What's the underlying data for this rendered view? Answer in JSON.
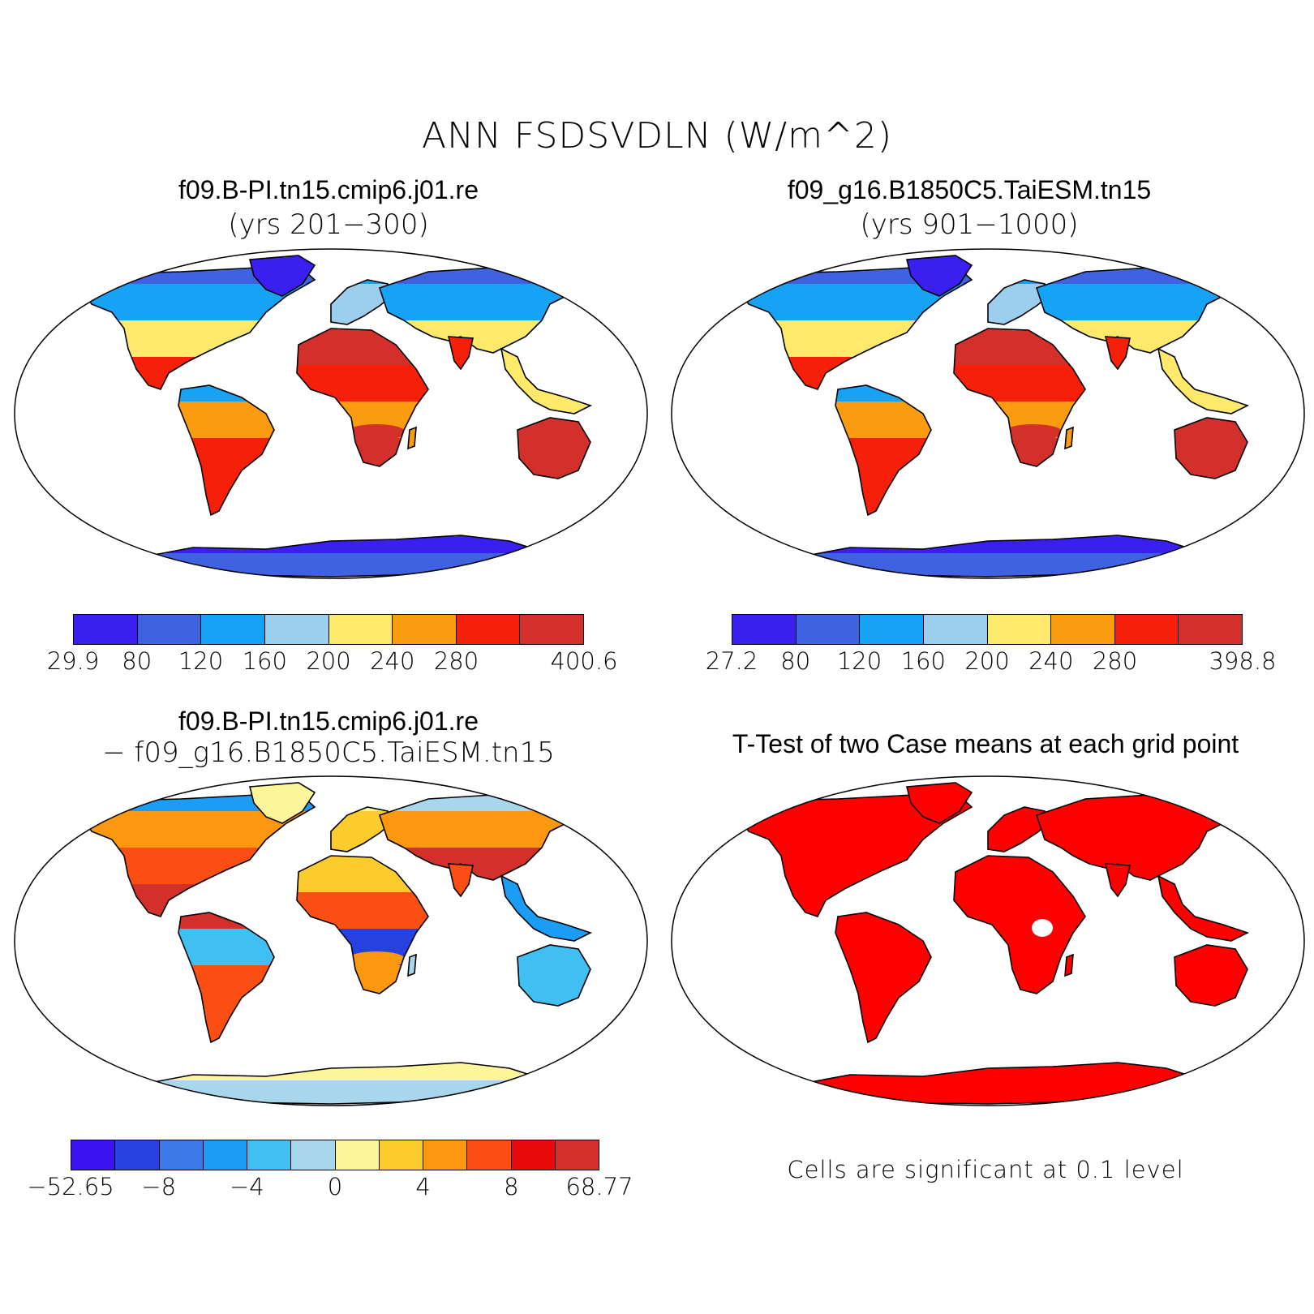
{
  "title": "ANN FSDSVDLN (W/m^2)",
  "panels": [
    {
      "id": "case1",
      "title": "f09.B-PI.tn15.cmip6.j01.re",
      "subtitle": "(yrs 201−300)",
      "colorbar": {
        "colors": [
          "#3b1ff0",
          "#3f63e0",
          "#16a3f5",
          "#9ccfee",
          "#fde96a",
          "#fb9c10",
          "#f61f0a",
          "#d3302c"
        ],
        "labels": [
          "29.9",
          "80",
          "120",
          "160",
          "200",
          "240",
          "280",
          "400.6"
        ]
      }
    },
    {
      "id": "case2",
      "title": "f09_g16.B1850C5.TaiESM.tn15",
      "subtitle": "(yrs 901−1000)",
      "colorbar": {
        "colors": [
          "#3b1ff0",
          "#3f63e0",
          "#16a3f5",
          "#9ccfee",
          "#fde96a",
          "#fb9c10",
          "#f61f0a",
          "#d3302c"
        ],
        "labels": [
          "27.2",
          "80",
          "120",
          "160",
          "200",
          "240",
          "280",
          "398.8"
        ]
      }
    },
    {
      "id": "diff",
      "title": "f09.B-PI.tn15.cmip6.j01.re",
      "subtitle": "− f09_g16.B1850C5.TaiESM.tn15",
      "colorbar": {
        "colors": [
          "#3b12f2",
          "#2741e0",
          "#3b79e6",
          "#1c9df5",
          "#3fbff2",
          "#a8d6ec",
          "#fdf59a",
          "#fbcc2c",
          "#fb980f",
          "#fb4e12",
          "#e80a0a",
          "#d3302c"
        ],
        "labels": [
          "−52.65",
          "−8",
          "−4",
          "0",
          "4",
          "8",
          "68.77"
        ]
      }
    },
    {
      "id": "ttest",
      "title": "T-Test of two Case means at each grid point",
      "note": "Cells are significant at 0.1 level",
      "significant_color": "#ff0000"
    }
  ]
}
